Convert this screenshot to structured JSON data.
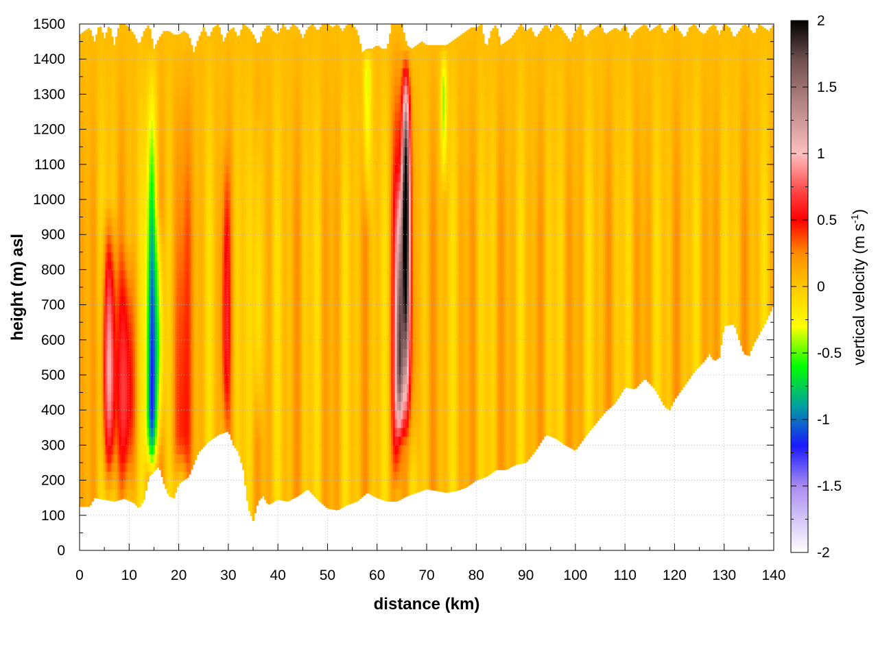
{
  "chart_data": {
    "type": "heatmap",
    "xlabel": "distance (km)",
    "ylabel": "height (m) asl",
    "xlim": [
      0,
      140
    ],
    "ylim": [
      0,
      1500
    ],
    "x_ticks": [
      "0",
      "10",
      "20",
      "30",
      "40",
      "50",
      "60",
      "70",
      "80",
      "90",
      "100",
      "110",
      "120",
      "130",
      "140"
    ],
    "y_ticks": [
      "0",
      "100",
      "200",
      "300",
      "400",
      "500",
      "600",
      "700",
      "800",
      "900",
      "1000",
      "1100",
      "1200",
      "1300",
      "1400",
      "1500"
    ],
    "grid": true,
    "colorbar": {
      "label_main": "vertical velocity (m s",
      "label_sup": "-1",
      "label_end": ")",
      "range": [
        -2,
        2
      ],
      "ticks": [
        "2",
        "1.5",
        "1",
        "0.5",
        "0",
        "-0.5",
        "-1",
        "-1.5",
        "-2"
      ],
      "palette": [
        {
          "v": -2.0,
          "color": "#ffffff"
        },
        {
          "v": -1.5,
          "color": "#a88cf0"
        },
        {
          "v": -1.2,
          "color": "#1a1aff"
        },
        {
          "v": -0.9,
          "color": "#00a0a0"
        },
        {
          "v": -0.6,
          "color": "#00ff00"
        },
        {
          "v": -0.3,
          "color": "#ffff00"
        },
        {
          "v": 0.0,
          "color": "#ffc800"
        },
        {
          "v": 0.25,
          "color": "#ff8c00"
        },
        {
          "v": 0.5,
          "color": "#ff0000"
        },
        {
          "v": 0.7,
          "color": "#ff4040"
        },
        {
          "v": 1.0,
          "color": "#ffc0c0"
        },
        {
          "v": 1.4,
          "color": "#b08080"
        },
        {
          "v": 1.7,
          "color": "#705050"
        },
        {
          "v": 2.0,
          "color": "#000000"
        }
      ]
    },
    "terrain_m": [
      [
        0,
        125
      ],
      [
        2,
        125
      ],
      [
        3,
        150
      ],
      [
        5,
        145
      ],
      [
        7,
        140
      ],
      [
        9,
        148
      ],
      [
        11,
        135
      ],
      [
        12,
        120
      ],
      [
        13,
        145
      ],
      [
        14,
        210
      ],
      [
        15,
        225
      ],
      [
        16,
        240
      ],
      [
        17,
        190
      ],
      [
        18,
        155
      ],
      [
        19,
        150
      ],
      [
        20,
        190
      ],
      [
        22,
        210
      ],
      [
        24,
        280
      ],
      [
        26,
        310
      ],
      [
        28,
        330
      ],
      [
        30,
        340
      ],
      [
        31,
        300
      ],
      [
        32,
        280
      ],
      [
        33,
        230
      ],
      [
        34,
        120
      ],
      [
        35,
        85
      ],
      [
        36,
        140
      ],
      [
        37,
        155
      ],
      [
        38,
        130
      ],
      [
        40,
        145
      ],
      [
        42,
        140
      ],
      [
        44,
        155
      ],
      [
        46,
        175
      ],
      [
        48,
        145
      ],
      [
        50,
        120
      ],
      [
        52,
        115
      ],
      [
        54,
        130
      ],
      [
        56,
        140
      ],
      [
        58,
        165
      ],
      [
        60,
        150
      ],
      [
        62,
        140
      ],
      [
        64,
        140
      ],
      [
        66,
        155
      ],
      [
        68,
        165
      ],
      [
        70,
        175
      ],
      [
        72,
        170
      ],
      [
        74,
        165
      ],
      [
        76,
        170
      ],
      [
        78,
        180
      ],
      [
        80,
        200
      ],
      [
        82,
        210
      ],
      [
        84,
        230
      ],
      [
        86,
        230
      ],
      [
        88,
        245
      ],
      [
        90,
        250
      ],
      [
        92,
        285
      ],
      [
        94,
        330
      ],
      [
        96,
        320
      ],
      [
        98,
        300
      ],
      [
        100,
        285
      ],
      [
        102,
        325
      ],
      [
        104,
        360
      ],
      [
        106,
        395
      ],
      [
        108,
        420
      ],
      [
        110,
        465
      ],
      [
        112,
        460
      ],
      [
        114,
        490
      ],
      [
        116,
        460
      ],
      [
        118,
        410
      ],
      [
        119,
        400
      ],
      [
        120,
        430
      ],
      [
        122,
        470
      ],
      [
        124,
        510
      ],
      [
        126,
        540
      ],
      [
        127,
        560
      ],
      [
        128,
        540
      ],
      [
        129,
        550
      ],
      [
        130,
        640
      ],
      [
        132,
        645
      ],
      [
        133,
        600
      ],
      [
        134,
        560
      ],
      [
        135,
        555
      ],
      [
        136,
        590
      ],
      [
        138,
        640
      ],
      [
        140,
        700
      ]
    ],
    "top_m": [
      [
        0,
        1470
      ],
      [
        1,
        1480
      ],
      [
        2,
        1490
      ],
      [
        3,
        1450
      ],
      [
        4,
        1500
      ],
      [
        5,
        1460
      ],
      [
        6,
        1500
      ],
      [
        7,
        1440
      ],
      [
        8,
        1500
      ],
      [
        9,
        1500
      ],
      [
        10,
        1490
      ],
      [
        11,
        1470
      ],
      [
        12,
        1440
      ],
      [
        13,
        1480
      ],
      [
        14,
        1500
      ],
      [
        15,
        1430
      ],
      [
        16,
        1460
      ],
      [
        17,
        1480
      ],
      [
        18,
        1480
      ],
      [
        19,
        1470
      ],
      [
        20,
        1470
      ],
      [
        21,
        1480
      ],
      [
        22,
        1470
      ],
      [
        23,
        1420
      ],
      [
        24,
        1460
      ],
      [
        25,
        1490
      ],
      [
        26,
        1460
      ],
      [
        27,
        1490
      ],
      [
        28,
        1500
      ],
      [
        29,
        1450
      ],
      [
        30,
        1480
      ],
      [
        31,
        1490
      ],
      [
        32,
        1460
      ],
      [
        33,
        1500
      ],
      [
        34,
        1490
      ],
      [
        35,
        1470
      ],
      [
        36,
        1440
      ],
      [
        37,
        1480
      ],
      [
        38,
        1500
      ],
      [
        39,
        1480
      ],
      [
        40,
        1470
      ],
      [
        41,
        1500
      ],
      [
        42,
        1480
      ],
      [
        43,
        1500
      ],
      [
        44,
        1490
      ],
      [
        45,
        1460
      ],
      [
        46,
        1490
      ],
      [
        47,
        1500
      ],
      [
        48,
        1480
      ],
      [
        49,
        1500
      ],
      [
        50,
        1500
      ],
      [
        51,
        1490
      ],
      [
        52,
        1500
      ],
      [
        53,
        1480
      ],
      [
        54,
        1500
      ],
      [
        55,
        1500
      ],
      [
        56,
        1480
      ],
      [
        57,
        1420
      ],
      [
        58,
        1430
      ],
      [
        59,
        1430
      ],
      [
        60,
        1440
      ],
      [
        61,
        1430
      ],
      [
        62,
        1430
      ],
      [
        63,
        1500
      ],
      [
        64,
        1500
      ],
      [
        65,
        1500
      ],
      [
        66,
        1440
      ],
      [
        67,
        1430
      ],
      [
        68,
        1440
      ],
      [
        69,
        1450
      ],
      [
        70,
        1440
      ],
      [
        71,
        1440
      ],
      [
        72,
        1440
      ],
      [
        73,
        1440
      ],
      [
        74,
        1440
      ],
      [
        75,
        1450
      ],
      [
        76,
        1460
      ],
      [
        77,
        1470
      ],
      [
        78,
        1480
      ],
      [
        79,
        1490
      ],
      [
        80,
        1490
      ],
      [
        81,
        1500
      ],
      [
        82,
        1430
      ],
      [
        83,
        1480
      ],
      [
        84,
        1500
      ],
      [
        85,
        1440
      ],
      [
        86,
        1450
      ],
      [
        87,
        1460
      ],
      [
        88,
        1480
      ],
      [
        89,
        1500
      ],
      [
        90,
        1480
      ],
      [
        91,
        1490
      ],
      [
        92,
        1460
      ],
      [
        93,
        1480
      ],
      [
        94,
        1500
      ],
      [
        95,
        1480
      ],
      [
        96,
        1500
      ],
      [
        97,
        1490
      ],
      [
        98,
        1470
      ],
      [
        99,
        1450
      ],
      [
        100,
        1480
      ],
      [
        101,
        1500
      ],
      [
        102,
        1460
      ],
      [
        103,
        1480
      ],
      [
        104,
        1490
      ],
      [
        105,
        1500
      ],
      [
        106,
        1470
      ],
      [
        107,
        1480
      ],
      [
        108,
        1490
      ],
      [
        109,
        1480
      ],
      [
        110,
        1500
      ],
      [
        111,
        1460
      ],
      [
        112,
        1480
      ],
      [
        113,
        1490
      ],
      [
        114,
        1500
      ],
      [
        115,
        1480
      ],
      [
        116,
        1490
      ],
      [
        117,
        1500
      ],
      [
        118,
        1470
      ],
      [
        119,
        1490
      ],
      [
        120,
        1500
      ],
      [
        121,
        1480
      ],
      [
        122,
        1460
      ],
      [
        123,
        1490
      ],
      [
        124,
        1500
      ],
      [
        125,
        1480
      ],
      [
        126,
        1470
      ],
      [
        127,
        1490
      ],
      [
        128,
        1500
      ],
      [
        129,
        1470
      ],
      [
        130,
        1500
      ],
      [
        131,
        1490
      ],
      [
        132,
        1460
      ],
      [
        133,
        1480
      ],
      [
        134,
        1500
      ],
      [
        135,
        1490
      ],
      [
        136,
        1470
      ],
      [
        137,
        1500
      ],
      [
        138,
        1490
      ],
      [
        139,
        1480
      ],
      [
        140,
        1500
      ]
    ],
    "background_w_ms": 0.05,
    "features": [
      {
        "x": 6.0,
        "width_km": 1.3,
        "z_bottom_m": 150,
        "z_top_m": 1000,
        "peak_w_ms": 0.95,
        "peak_z_m": 520
      },
      {
        "x": 9.5,
        "width_km": 1.8,
        "z_bottom_m": 150,
        "z_top_m": 900,
        "peak_w_ms": 0.55,
        "peak_z_m": 450
      },
      {
        "x": 14.5,
        "width_km": 1.0,
        "z_bottom_m": 200,
        "z_top_m": 1450,
        "peak_w_ms": -1.25,
        "peak_z_m": 420
      },
      {
        "x": 16.0,
        "width_km": 1.0,
        "z_bottom_m": 250,
        "z_top_m": 1000,
        "peak_w_ms": -0.55,
        "peak_z_m": 600
      },
      {
        "x": 20.5,
        "width_km": 1.6,
        "z_bottom_m": 190,
        "z_top_m": 1450,
        "peak_w_ms": 0.5,
        "peak_z_m": 350
      },
      {
        "x": 29.5,
        "width_km": 0.9,
        "z_bottom_m": 300,
        "z_top_m": 1200,
        "peak_w_ms": 0.45,
        "peak_z_m": 650
      },
      {
        "x": 36.0,
        "width_km": 0.9,
        "z_bottom_m": 300,
        "z_top_m": 1300,
        "peak_w_ms": -0.35,
        "peak_z_m": 700
      },
      {
        "x": 58.0,
        "width_km": 0.8,
        "z_bottom_m": 900,
        "z_top_m": 1430,
        "peak_w_ms": -0.45,
        "peak_z_m": 1350
      },
      {
        "x": 64.0,
        "width_km": 1.0,
        "z_bottom_m": 160,
        "z_top_m": 1500,
        "peak_w_ms": 0.7,
        "peak_z_m": 500
      },
      {
        "x": 65.8,
        "width_km": 0.8,
        "z_bottom_m": 300,
        "z_top_m": 1430,
        "peak_w_ms": 2.0,
        "peak_z_m": 1000
      },
      {
        "x": 64.6,
        "width_km": 0.7,
        "z_bottom_m": 300,
        "z_top_m": 1100,
        "peak_w_ms": 1.1,
        "peak_z_m": 550
      },
      {
        "x": 67.0,
        "width_km": 1.2,
        "z_bottom_m": 200,
        "z_top_m": 1430,
        "peak_w_ms": 0.35,
        "peak_z_m": 600
      },
      {
        "x": 73.5,
        "width_km": 0.6,
        "z_bottom_m": 1000,
        "z_top_m": 1440,
        "peak_w_ms": -0.5,
        "peak_z_m": 1300
      }
    ]
  }
}
